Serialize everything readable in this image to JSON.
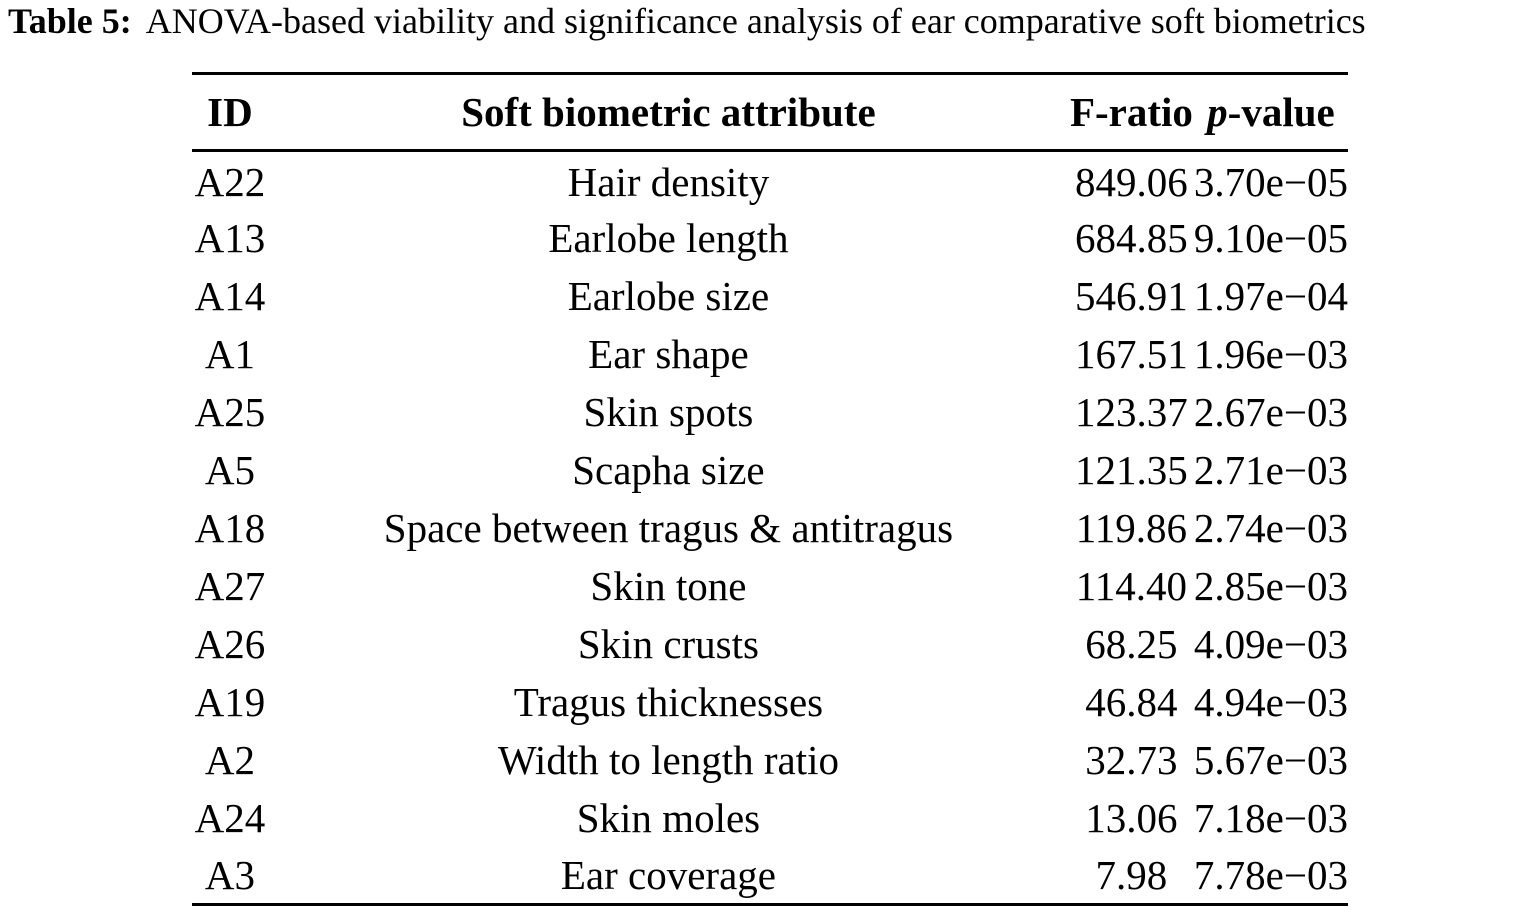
{
  "caption": {
    "label": "Table 5:",
    "text": "ANOVA-based viability and significance analysis of ear comparative soft biometrics"
  },
  "table": {
    "headers": {
      "id": "ID",
      "attribute": "Soft biometric attribute",
      "f_ratio": "F-ratio",
      "p_value_italic": "p",
      "p_value_rest": "-value"
    },
    "rows": [
      {
        "id": "A22",
        "attribute": "Hair density",
        "f_ratio": "849.06",
        "p_value": "3.70e−05"
      },
      {
        "id": "A13",
        "attribute": "Earlobe length",
        "f_ratio": "684.85",
        "p_value": "9.10e−05"
      },
      {
        "id": "A14",
        "attribute": "Earlobe size",
        "f_ratio": "546.91",
        "p_value": "1.97e−04"
      },
      {
        "id": "A1",
        "attribute": "Ear shape",
        "f_ratio": "167.51",
        "p_value": "1.96e−03"
      },
      {
        "id": "A25",
        "attribute": "Skin spots",
        "f_ratio": "123.37",
        "p_value": "2.67e−03"
      },
      {
        "id": "A5",
        "attribute": "Scapha size",
        "f_ratio": "121.35",
        "p_value": "2.71e−03"
      },
      {
        "id": "A18",
        "attribute": "Space between tragus & antitragus",
        "f_ratio": "119.86",
        "p_value": "2.74e−03"
      },
      {
        "id": "A27",
        "attribute": "Skin tone",
        "f_ratio": "114.40",
        "p_value": "2.85e−03"
      },
      {
        "id": "A26",
        "attribute": "Skin crusts",
        "f_ratio": "68.25",
        "p_value": "4.09e−03"
      },
      {
        "id": "A19",
        "attribute": "Tragus thicknesses",
        "f_ratio": "46.84",
        "p_value": "4.94e−03"
      },
      {
        "id": "A2",
        "attribute": "Width to length ratio",
        "f_ratio": "32.73",
        "p_value": "5.67e−03"
      },
      {
        "id": "A24",
        "attribute": "Skin moles",
        "f_ratio": "13.06",
        "p_value": "7.18e−03"
      },
      {
        "id": "A3",
        "attribute": "Ear coverage",
        "f_ratio": "7.98",
        "p_value": "7.78e−03"
      }
    ]
  }
}
